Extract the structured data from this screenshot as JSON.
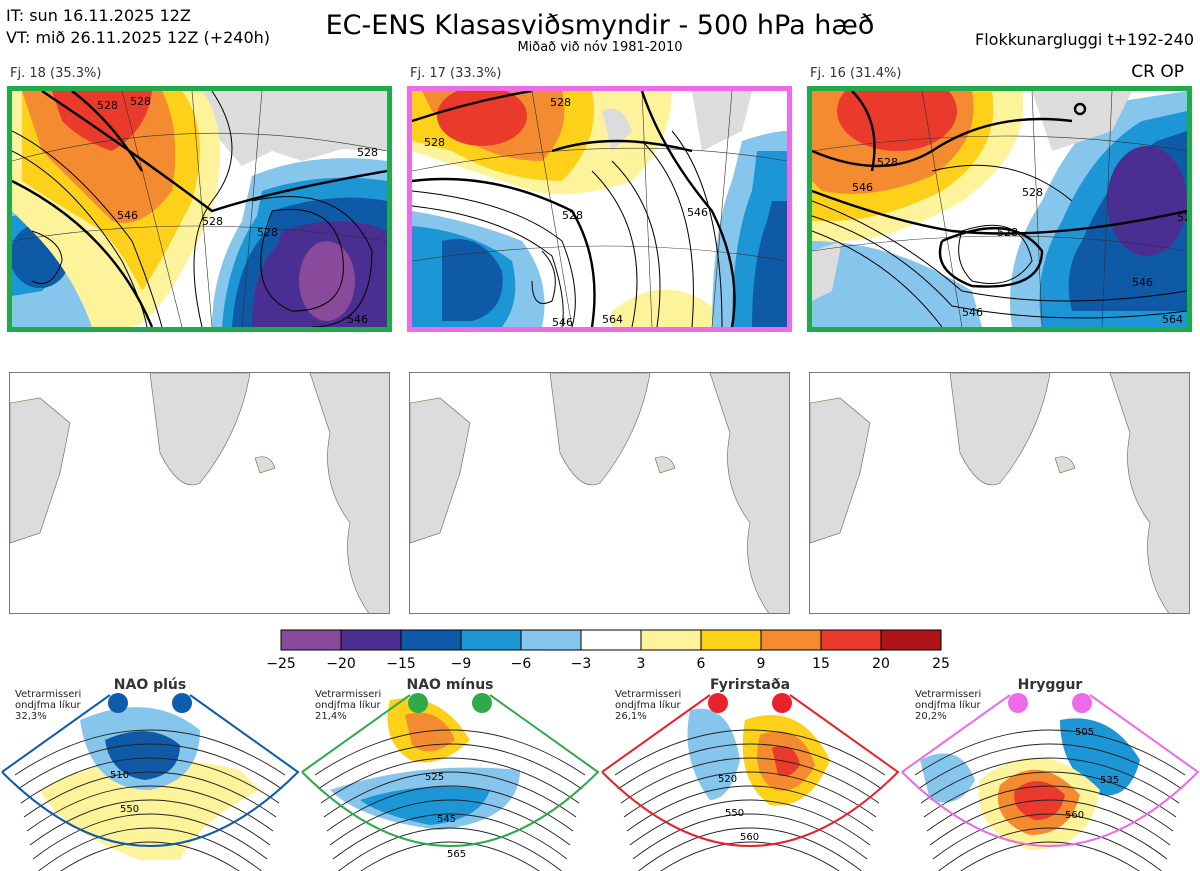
{
  "header": {
    "it_line": "IT: sun 16.11.2025 12Z",
    "vt_line": "VT: mið 26.11.2025 12Z  (+240h)",
    "title": "EC-ENS Klasasviðsmyndir - 500 hPa hæð",
    "subtitle": "Miðað við nóv 1981-2010",
    "window": "Flokkunargluggi t+192-240",
    "crop_label": "CR OP"
  },
  "panels": [
    {
      "label": "Fj. 18 (35.3%)",
      "border_color": "#22aa4a",
      "contour_labels": [
        "528",
        "528",
        "546",
        "528",
        "528",
        "528",
        "546"
      ]
    },
    {
      "label": "Fj. 17 (33.3%)",
      "border_color": "#ee6be8",
      "contour_labels": [
        "528",
        "528",
        "528",
        "546",
        "546",
        "564"
      ]
    },
    {
      "label": "Fj. 16 (31.4%)",
      "border_color": "#22aa4a",
      "contour_labels": [
        "528",
        "546",
        "528",
        "528",
        "528",
        "546",
        "546",
        "564"
      ]
    }
  ],
  "regimes": [
    {
      "name": "NAO plús",
      "note": "Vetrarmisseri ondjfma líkur 32,3%",
      "color": "#0d5cad",
      "contour_labels": [
        "510",
        "550"
      ]
    },
    {
      "name": "NAO mínus",
      "note": "Vetrarmisseri ondjfma líkur 21,4%",
      "color": "#2eaa4a",
      "contour_labels": [
        "525",
        "545",
        "565"
      ]
    },
    {
      "name": "Fyrirstaða",
      "note": "Vetrarmisseri ondjfma líkur 26,1%",
      "color": "#e8222a",
      "contour_labels": [
        "520",
        "550",
        "560"
      ]
    },
    {
      "name": "Hryggur",
      "note": "Vetrarmisseri ondjfma líkur 20,2%",
      "color": "#ee6be8",
      "contour_labels": [
        "505",
        "535",
        "560"
      ]
    }
  ],
  "chart_data": {
    "type": "heatmap",
    "title": "EC-ENS Klasasviðsmyndir - 500 hPa hæð",
    "colorbar": {
      "ticks": [
        "−25",
        "−20",
        "−15",
        "−9",
        "−6",
        "−3",
        "3",
        "6",
        "9",
        "15",
        "20",
        "25"
      ],
      "bins": [
        {
          "from": -25,
          "to": -20,
          "color": "#8a4a9c"
        },
        {
          "from": -20,
          "to": -15,
          "color": "#4a2e92"
        },
        {
          "from": -15,
          "to": -9,
          "color": "#0e5aa7"
        },
        {
          "from": -9,
          "to": -6,
          "color": "#1d96d6"
        },
        {
          "from": -6,
          "to": -3,
          "color": "#86c5ec"
        },
        {
          "from": -3,
          "to": 3,
          "color": "#ffffff"
        },
        {
          "from": 3,
          "to": 6,
          "color": "#fdf39a"
        },
        {
          "from": 6,
          "to": 9,
          "color": "#fdd11a"
        },
        {
          "from": 9,
          "to": 15,
          "color": "#f58b30"
        },
        {
          "from": 15,
          "to": 20,
          "color": "#ea3a2c"
        },
        {
          "from": 20,
          "to": 25,
          "color": "#ad1318"
        }
      ]
    },
    "clusters": [
      {
        "cluster": "Fj. 18",
        "probability_pct": 35.3
      },
      {
        "cluster": "Fj. 17",
        "probability_pct": 33.3
      },
      {
        "cluster": "Fj. 16",
        "probability_pct": 31.4
      }
    ]
  }
}
